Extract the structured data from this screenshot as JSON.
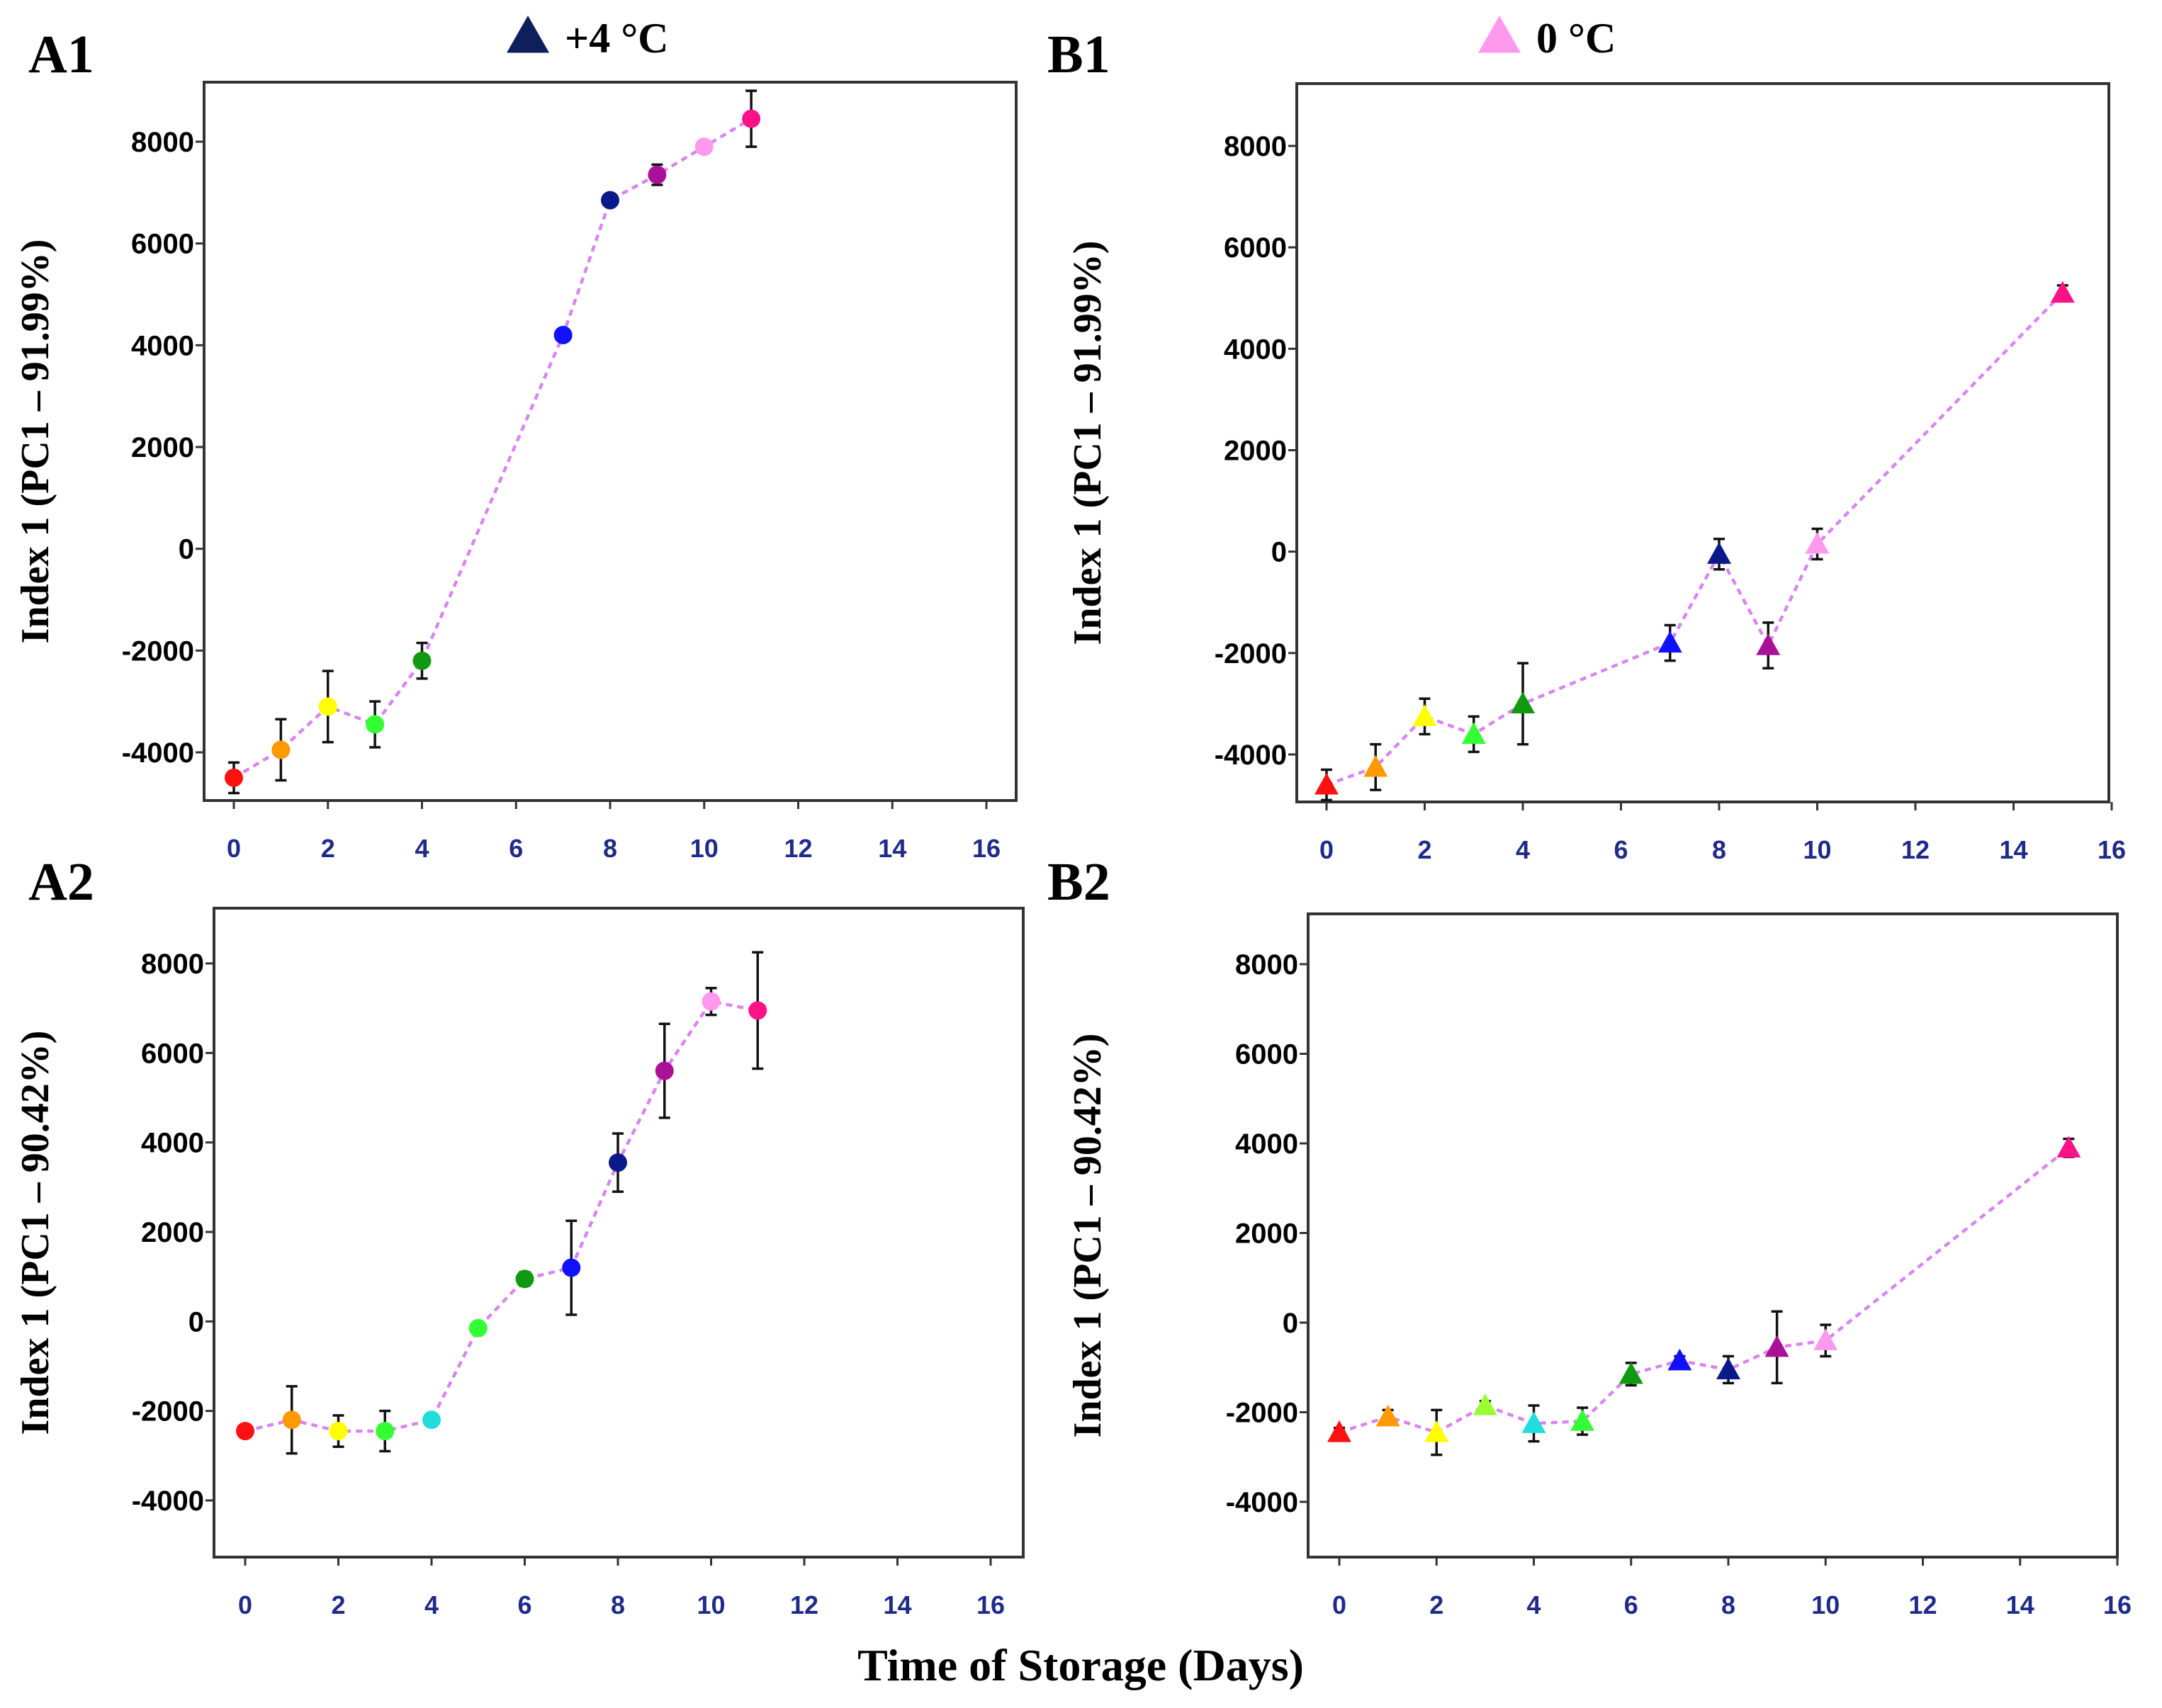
{
  "xlabel": "Time of Storage (Days)",
  "legend": [
    {
      "marker": "triangle",
      "color": "#0d1f5c",
      "label": "+4 °C"
    },
    {
      "marker": "triangle",
      "color": "#ff99ee",
      "label": "0 °C"
    }
  ],
  "chart_data": [
    {
      "type": "scatter",
      "panel_label": "A1",
      "ylabel": "Index 1 (PC1 – 91.99%)",
      "marker": "circle",
      "line_color": "#d985f0",
      "xlim": [
        0,
        16
      ],
      "ylim": [
        -5000,
        9000
      ],
      "xticks": [
        0,
        2,
        4,
        6,
        8,
        10,
        12,
        14,
        16
      ],
      "yticks": [
        -4000,
        -2000,
        0,
        2000,
        4000,
        6000,
        8000
      ],
      "points": [
        {
          "x": 0,
          "y": -4500,
          "err": 300,
          "color": "#ff1111"
        },
        {
          "x": 1,
          "y": -3950,
          "err": 600,
          "color": "#ff9900"
        },
        {
          "x": 2,
          "y": -3100,
          "err": 700,
          "color": "#ffff00"
        },
        {
          "x": 3,
          "y": -3450,
          "err": 450,
          "color": "#33ff33"
        },
        {
          "x": 4,
          "y": -2200,
          "err": 350,
          "color": "#119911"
        },
        {
          "x": 7,
          "y": 4200,
          "err": 100,
          "color": "#1111ff"
        },
        {
          "x": 8,
          "y": 6850,
          "err": 100,
          "color": "#0a1a8a"
        },
        {
          "x": 9,
          "y": 7350,
          "err": 200,
          "color": "#aa1199"
        },
        {
          "x": 10,
          "y": 7900,
          "err": 100,
          "color": "#ff99ee"
        },
        {
          "x": 11,
          "y": 8450,
          "err": 550,
          "color": "#ff1188"
        }
      ]
    },
    {
      "type": "scatter",
      "panel_label": "B1",
      "ylabel": "Index 1 (PC1 – 91.99%)",
      "marker": "triangle",
      "line_color": "#d985f0",
      "xlim": [
        0,
        16
      ],
      "ylim": [
        -5000,
        9000
      ],
      "xticks": [
        0,
        2,
        4,
        6,
        8,
        10,
        12,
        14,
        16
      ],
      "yticks": [
        -4000,
        -2000,
        0,
        2000,
        4000,
        6000,
        8000
      ],
      "points": [
        {
          "x": 0,
          "y": -4600,
          "err": 300,
          "color": "#ff1111"
        },
        {
          "x": 1,
          "y": -4250,
          "err": 450,
          "color": "#ff9900"
        },
        {
          "x": 2,
          "y": -3250,
          "err": 350,
          "color": "#ffff00"
        },
        {
          "x": 3,
          "y": -3600,
          "err": 350,
          "color": "#33ff33"
        },
        {
          "x": 4,
          "y": -3000,
          "err": 800,
          "color": "#119911"
        },
        {
          "x": 7,
          "y": -1800,
          "err": 350,
          "color": "#1111ff"
        },
        {
          "x": 8,
          "y": -50,
          "err": 300,
          "color": "#0a1a8a"
        },
        {
          "x": 9,
          "y": -1850,
          "err": 450,
          "color": "#aa1199"
        },
        {
          "x": 10,
          "y": 150,
          "err": 300,
          "color": "#ff99ee"
        },
        {
          "x": 15,
          "y": 5100,
          "err": 150,
          "color": "#ff1188"
        }
      ]
    },
    {
      "type": "scatter",
      "panel_label": "A2",
      "ylabel": "Index 1 (PC1 – 90.42%)",
      "marker": "circle",
      "line_color": "#d985f0",
      "xlim": [
        0,
        16
      ],
      "ylim": [
        -5000,
        9000
      ],
      "xticks": [
        0,
        2,
        4,
        6,
        8,
        10,
        12,
        14,
        16
      ],
      "yticks": [
        -4000,
        -2000,
        0,
        2000,
        4000,
        6000,
        8000
      ],
      "points": [
        {
          "x": 0,
          "y": -2450,
          "err": 100,
          "color": "#ff1111"
        },
        {
          "x": 1,
          "y": -2200,
          "err": 750,
          "color": "#ff9900"
        },
        {
          "x": 2,
          "y": -2450,
          "err": 350,
          "color": "#ffff00"
        },
        {
          "x": 3,
          "y": -2450,
          "err": 450,
          "color": "#33ff33"
        },
        {
          "x": 4,
          "y": -2200,
          "err": 100,
          "color": "#22dddd"
        },
        {
          "x": 5,
          "y": -150,
          "err": 100,
          "color": "#33ff33"
        },
        {
          "x": 6,
          "y": 950,
          "err": 150,
          "color": "#119911"
        },
        {
          "x": 7,
          "y": 1200,
          "err": 1050,
          "color": "#1111ff"
        },
        {
          "x": 8,
          "y": 3550,
          "err": 650,
          "color": "#0a1a8a"
        },
        {
          "x": 9,
          "y": 5600,
          "err": 1050,
          "color": "#aa1199"
        },
        {
          "x": 10,
          "y": 7150,
          "err": 300,
          "color": "#ff99ee"
        },
        {
          "x": 11,
          "y": 6950,
          "err": 1300,
          "color": "#ff1188"
        }
      ]
    },
    {
      "type": "scatter",
      "panel_label": "B2",
      "ylabel": "Index 1 (PC1 – 90.42%)",
      "marker": "triangle",
      "line_color": "#d985f0",
      "xlim": [
        0,
        16
      ],
      "ylim": [
        -5000,
        9000
      ],
      "xticks": [
        0,
        2,
        4,
        6,
        8,
        10,
        12,
        14,
        16
      ],
      "yticks": [
        -4000,
        -2000,
        0,
        2000,
        4000,
        6000,
        8000
      ],
      "points": [
        {
          "x": 0,
          "y": -2450,
          "err": 100,
          "color": "#ff1111"
        },
        {
          "x": 1,
          "y": -2100,
          "err": 150,
          "color": "#ff9900"
        },
        {
          "x": 2,
          "y": -2450,
          "err": 500,
          "color": "#ffff00"
        },
        {
          "x": 3,
          "y": -1850,
          "err": 100,
          "color": "#99ff33"
        },
        {
          "x": 4,
          "y": -2250,
          "err": 400,
          "color": "#22dddd"
        },
        {
          "x": 5,
          "y": -2200,
          "err": 300,
          "color": "#33ff33"
        },
        {
          "x": 6,
          "y": -1150,
          "err": 250,
          "color": "#119911"
        },
        {
          "x": 7,
          "y": -850,
          "err": 100,
          "color": "#1111ff"
        },
        {
          "x": 8,
          "y": -1050,
          "err": 300,
          "color": "#0a1a8a"
        },
        {
          "x": 9,
          "y": -550,
          "err": 800,
          "color": "#aa1199"
        },
        {
          "x": 10,
          "y": -400,
          "err": 350,
          "color": "#ff99ee"
        },
        {
          "x": 15,
          "y": 3900,
          "err": 200,
          "color": "#ff1188"
        }
      ]
    }
  ]
}
